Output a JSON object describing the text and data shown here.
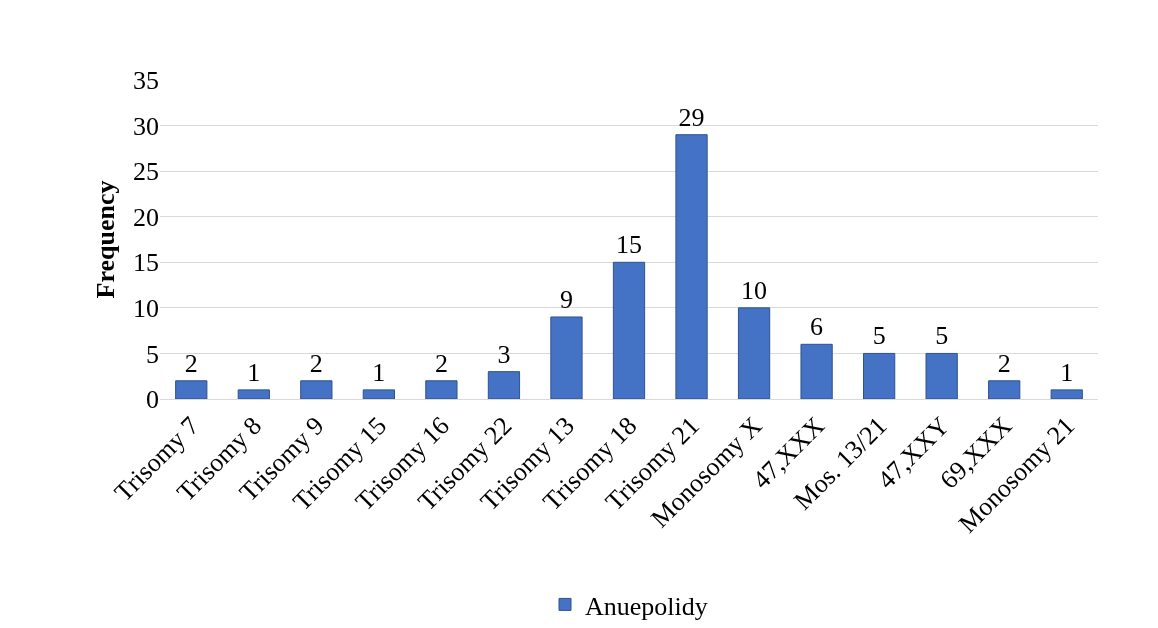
{
  "chart_data": {
    "type": "bar",
    "ylabel": "Frequency",
    "categories": [
      "Trisomy 7",
      "Trisomy 8",
      "Trisomy 9",
      "Trisomy 15",
      "Trisomy 16",
      "Trisomy 22",
      "Trisomy 13",
      "Trisomy 18",
      "Trisomy 21",
      "Monosomy X",
      "47,XXX",
      "Mos. 13/21",
      "47,XXY",
      "69,XXX",
      "Monosomy 21"
    ],
    "series": [
      {
        "name": "Anuepolidy",
        "color": "#4472c4",
        "values": [
          2,
          1,
          2,
          1,
          2,
          3,
          9,
          15,
          29,
          10,
          6,
          5,
          5,
          2,
          1
        ]
      }
    ],
    "ylim": [
      0,
      35
    ],
    "yticks": [
      0,
      5,
      10,
      15,
      20,
      25,
      30,
      35
    ],
    "grid": "y",
    "legend": "bottom",
    "data_labels": true
  }
}
